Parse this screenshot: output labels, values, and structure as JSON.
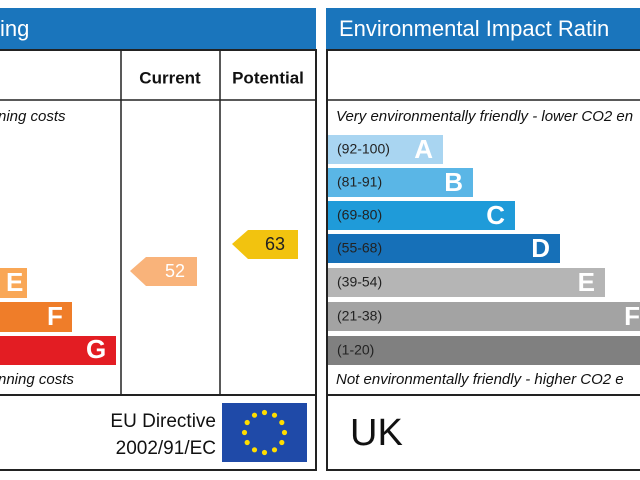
{
  "energy_panel": {
    "title": "ing",
    "col_current": "Current",
    "col_potential": "Potential",
    "top_note": "ning costs",
    "bands": [
      {
        "letter": "E"
      },
      {
        "letter": "F"
      },
      {
        "letter": "G"
      }
    ],
    "bottom_note": "nning costs",
    "current": 52,
    "potential": 63,
    "directive": [
      "EU Directive",
      "2002/91/EC"
    ]
  },
  "environmental_panel": {
    "title": "Environmental Impact Ratin",
    "top_note": "Very environmentally friendly - lower CO2 en",
    "bands": [
      {
        "range": "(92-100)",
        "letter": "A"
      },
      {
        "range": "(81-91)",
        "letter": "B"
      },
      {
        "range": "(69-80)",
        "letter": "C"
      },
      {
        "range": "(55-68)",
        "letter": "D"
      },
      {
        "range": "(39-54)",
        "letter": "E"
      },
      {
        "range": "(21-38)",
        "letter": "F"
      },
      {
        "range": "(1-20)"
      }
    ],
    "bottom_note": "Not environmentally friendly - higher CO2 e",
    "country": "UK"
  }
}
